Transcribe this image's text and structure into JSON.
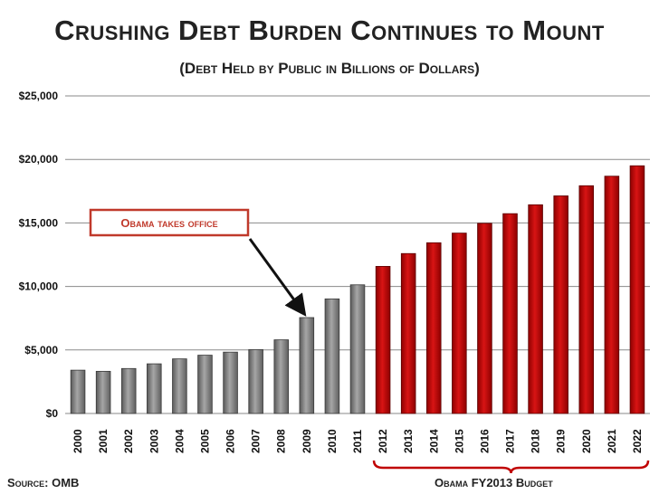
{
  "title": "Crushing Debt Burden Continues to Mount",
  "subtitle": "(Debt Held by Public in Billions of Dollars)",
  "footer": {
    "source": "Source: OMB",
    "budget_label": "Obama FY2013 Budget"
  },
  "annotation": {
    "text": "Obama takes office",
    "points_to": "2009"
  },
  "colors": {
    "historical": "#8c8c8c",
    "projected": "#c00000",
    "annotation_border": "#c0392b",
    "annotation_text": "#c0392b"
  },
  "chart_data": {
    "type": "bar",
    "title": "Crushing Debt Burden Continues to Mount",
    "subtitle": "(Debt Held by Public in Billions of Dollars)",
    "categories": [
      "2000",
      "2001",
      "2002",
      "2003",
      "2004",
      "2005",
      "2006",
      "2007",
      "2008",
      "2009",
      "2010",
      "2011",
      "2012",
      "2013",
      "2014",
      "2015",
      "2016",
      "2017",
      "2018",
      "2019",
      "2020",
      "2021",
      "2022"
    ],
    "values": [
      3410,
      3320,
      3540,
      3910,
      4300,
      4590,
      4830,
      5030,
      5800,
      7550,
      9020,
      10130,
      11580,
      12590,
      13440,
      14200,
      14970,
      15730,
      16430,
      17130,
      17930,
      18680,
      19500
    ],
    "historical_through": "2011",
    "projected_from": "2012",
    "ylim": [
      0,
      25000
    ],
    "yticks": [
      0,
      5000,
      10000,
      15000,
      20000,
      25000
    ],
    "ytick_labels": [
      "$0",
      "$5,000",
      "$10,000",
      "$15,000",
      "$20,000",
      "$25,000"
    ],
    "grid": true
  }
}
